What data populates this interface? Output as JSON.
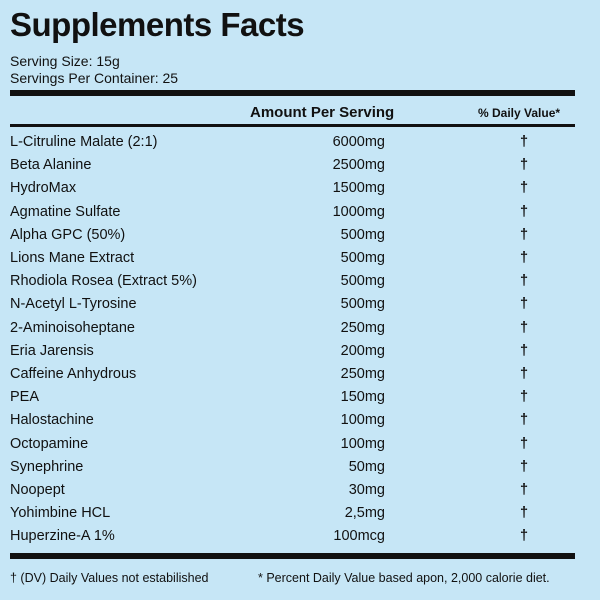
{
  "title": "Supplements Facts",
  "serving_size": "Serving Size: 15g",
  "servings_per_container": "Servings Per Container: 25",
  "header": {
    "amount": "Amount Per Serving",
    "daily_value": "% Daily Value*"
  },
  "rows": [
    [
      "L-Citruline Malate (2:1)",
      "6000mg",
      "†"
    ],
    [
      "Beta Alanine",
      "2500mg",
      "†"
    ],
    [
      "HydroMax",
      "1500mg",
      "†"
    ],
    [
      "Agmatine Sulfate",
      "1000mg",
      "†"
    ],
    [
      "Alpha GPC (50%)",
      "500mg",
      "†"
    ],
    [
      "Lions Mane Extract",
      "500mg",
      "†"
    ],
    [
      "Rhodiola Rosea (Extract 5%)",
      "500mg",
      "†"
    ],
    [
      "N-Acetyl L-Tyrosine",
      "500mg",
      "†"
    ],
    [
      "2-Aminoisoheptane",
      "250mg",
      "†"
    ],
    [
      "Eria Jarensis",
      "200mg",
      "†"
    ],
    [
      "Caffeine Anhydrous",
      "250mg",
      "†"
    ],
    [
      "PEA",
      "150mg",
      "†"
    ],
    [
      "Halostachine",
      "100mg",
      "†"
    ],
    [
      "Octopamine",
      "100mg",
      "†"
    ],
    [
      "Synephrine",
      "50mg",
      "†"
    ],
    [
      "Noopept",
      "30mg",
      "†"
    ],
    [
      "Yohimbine HCL",
      "2,5mg",
      "†"
    ],
    [
      "Huperzine-A 1%",
      "100mcg",
      "†"
    ]
  ],
  "footnotes": [
    "† (DV) Daily Values not estabilished",
    "* Percent Daily Value based apon, 2,000 calorie diet."
  ]
}
